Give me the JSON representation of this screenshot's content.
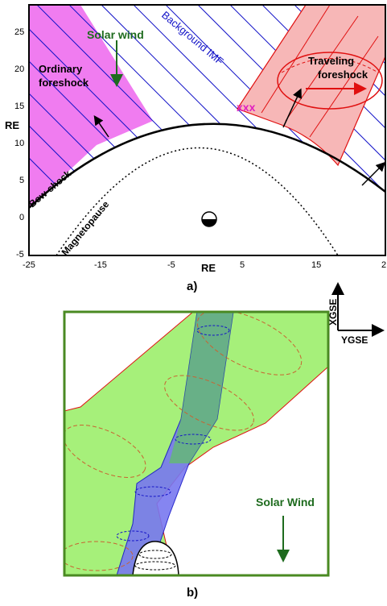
{
  "panel_a": {
    "caption": "a)",
    "y_axis_label": "RE",
    "x_axis_label": "RE",
    "y_ticks": [
      "25",
      "20",
      "15",
      "10",
      "5",
      "0",
      "-5"
    ],
    "x_ticks": [
      "-25",
      "-15",
      "-5",
      "5",
      "15",
      "2"
    ],
    "labels": {
      "solar_wind": "Solar wind",
      "background_imf": "Background IMF",
      "ordinary_foreshock_line1": "Ordinary",
      "ordinary_foreshock_line2": "foreshock",
      "traveling_foreshock_line1": "Traveling",
      "traveling_foreshock_line2": "foreshock",
      "bow_shock": "Bow-shock",
      "magnetopause": "Magnetopause",
      "x_marks": "xxx"
    },
    "colors": {
      "ordinary_foreshock": "#f07cf0",
      "traveling_foreshock": "#f7b7b7",
      "imf_lines": "#1414c8",
      "solar_wind_text": "#1e6b1e",
      "traveling_outline": "#e01010"
    }
  },
  "panel_b": {
    "caption": "b)",
    "axes": {
      "x_label": "XGSE",
      "y_label": "YGSE"
    },
    "solar_wind_label": "Solar Wind",
    "colors": {
      "green_region": "#a6f07a",
      "blue_region": "#7878f0",
      "frame": "#4a8a22",
      "ring_lines": "#c86432",
      "solar_wind_text": "#1e6b1e"
    }
  }
}
